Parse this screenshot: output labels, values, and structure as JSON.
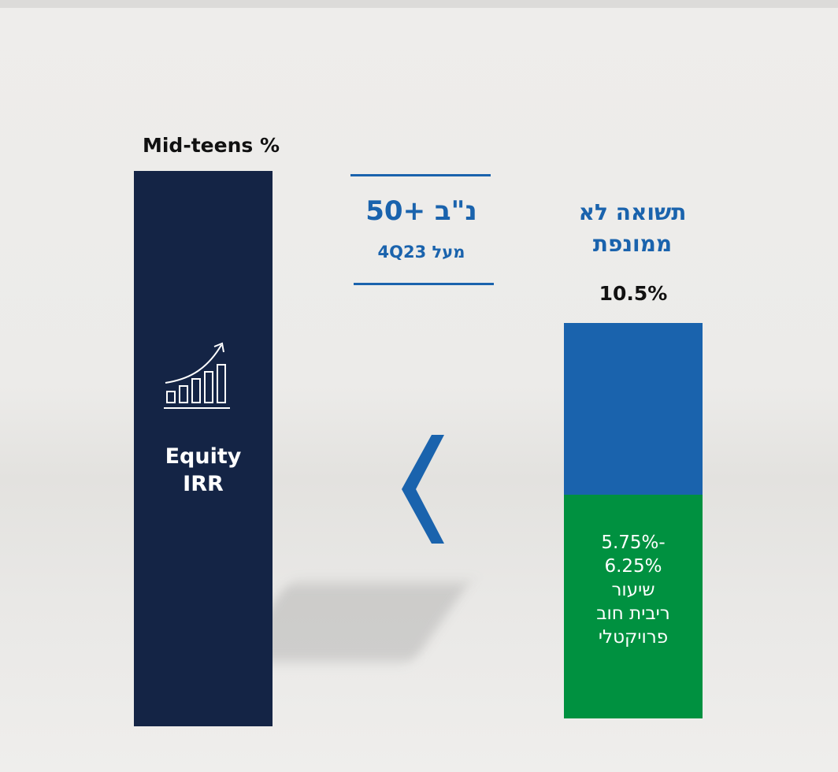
{
  "left": {
    "label": "Mid-teens %",
    "bar_text": [
      "Equity",
      "IRR"
    ]
  },
  "middle": {
    "headline": "נ\"ב +50",
    "subline": "מעל 4Q23"
  },
  "right": {
    "title": [
      "תשואה לא",
      "ממונפת"
    ],
    "value": "10.5%",
    "range": [
      "5.75%-",
      "6.25%"
    ],
    "bar_text": [
      "שיעור",
      "ריבית חוב",
      "פרויקטלי"
    ]
  }
}
